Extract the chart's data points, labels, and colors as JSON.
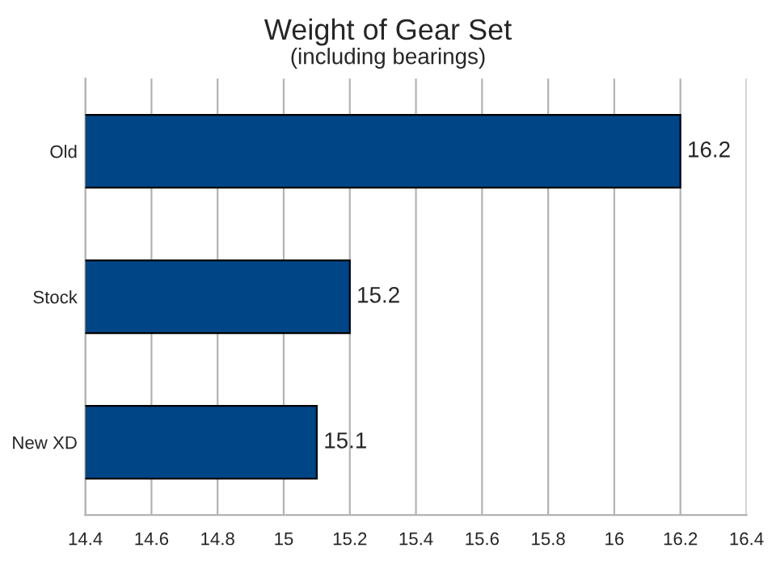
{
  "chart_data": {
    "type": "bar",
    "orientation": "horizontal",
    "title": "Weight of Gear Set",
    "subtitle": "(including bearings)",
    "categories": [
      "Old",
      "Stock",
      "New XD"
    ],
    "values": [
      16.2,
      15.2,
      15.1
    ],
    "color": "#004586",
    "xlim": [
      14.4,
      16.4
    ],
    "xticks": [
      14.4,
      14.6,
      14.8,
      15,
      15.2,
      15.4,
      15.6,
      15.8,
      16,
      16.2,
      16.4
    ],
    "grid": "x",
    "data_labels": true
  }
}
